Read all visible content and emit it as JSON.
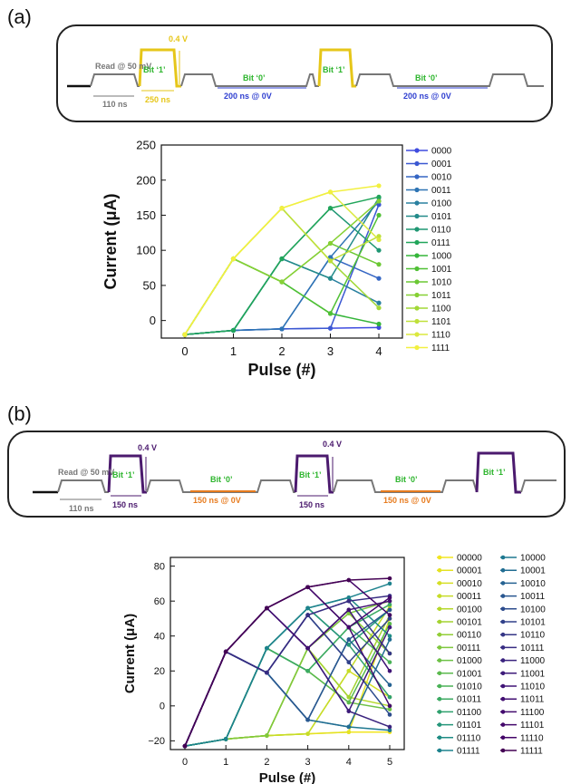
{
  "panel_a": {
    "label": "(a)",
    "pulse": {
      "read": "Read @ 50 mV",
      "read_width": "110 ns",
      "bit1": "Bit ‘1’",
      "bit1_amp": "0.4 V",
      "bit1_width": "250 ns",
      "bit0": "Bit ‘0’",
      "bit0_width": "200 ns @ 0V",
      "bit1_second": "Bit ‘1’",
      "bit0_second": "Bit ‘0’",
      "bit0_width_second": "200 ns @ 0V"
    },
    "colors": {
      "bit1": "#e6c619",
      "bit0": "#2f3fd0",
      "read": "#777777",
      "label": "#2db52d"
    }
  },
  "panel_b": {
    "label": "(b)",
    "pulse": {
      "read": "Read @ 50 mV",
      "read_width": "110 ns",
      "bit1": "Bit ‘1’",
      "bit1_amp": "0.4 V",
      "bit1_width": "150 ns",
      "bit0": "Bit ‘0’",
      "bit0_width": "150 ns @ 0V",
      "bit1_second": "Bit ‘1’",
      "bit1_amp_second": "0.4 V",
      "bit1_width_second": "150 ns",
      "bit0_second": "Bit ‘0’",
      "bit0_width_second": "150 ns @ 0V",
      "bit1_third": "Bit ‘1’"
    },
    "colors": {
      "bit1": "#4b1a6e",
      "bit0": "#e77b1e",
      "read": "#777777",
      "label": "#2db52d"
    }
  },
  "chart_data": [
    {
      "type": "line",
      "xlabel": "Pulse (#)",
      "ylabel": "Current (μA)",
      "x": [
        0,
        1,
        2,
        3,
        4
      ],
      "xticks": [
        "0",
        "1",
        "2",
        "3",
        "4"
      ],
      "ylim": [
        -25,
        250
      ],
      "yticks": [
        "0",
        "50",
        "100",
        "150",
        "200",
        "250"
      ],
      "ytick_values": [
        0,
        50,
        100,
        150,
        200,
        250
      ],
      "legend_position": "right",
      "series": [
        {
          "name": "0000",
          "color": "#3f4cdf",
          "values": [
            -20,
            -14,
            -12,
            -11,
            -10
          ]
        },
        {
          "name": "0001",
          "color": "#3b58d2",
          "values": [
            -20,
            -14,
            -12,
            -11,
            165
          ]
        },
        {
          "name": "0010",
          "color": "#3566c4",
          "values": [
            -20,
            -14,
            -12,
            90,
            60
          ]
        },
        {
          "name": "0011",
          "color": "#2e74b4",
          "values": [
            -20,
            -14,
            -12,
            90,
            170
          ]
        },
        {
          "name": "0100",
          "color": "#2a80a0",
          "values": [
            -20,
            -14,
            88,
            60,
            25
          ]
        },
        {
          "name": "0101",
          "color": "#238b8a",
          "values": [
            -20,
            -14,
            88,
            60,
            175
          ]
        },
        {
          "name": "0110",
          "color": "#1f9773",
          "values": [
            -20,
            -14,
            88,
            160,
            100
          ]
        },
        {
          "name": "0111",
          "color": "#21a55a",
          "values": [
            -20,
            -14,
            88,
            160,
            176
          ]
        },
        {
          "name": "1000",
          "color": "#35b53a",
          "values": [
            -20,
            88,
            55,
            10,
            -5
          ]
        },
        {
          "name": "1001",
          "color": "#50c035",
          "values": [
            -20,
            88,
            55,
            10,
            150
          ]
        },
        {
          "name": "1010",
          "color": "#6bc834",
          "values": [
            -20,
            88,
            55,
            110,
            80
          ]
        },
        {
          "name": "1011",
          "color": "#86d034",
          "values": [
            -20,
            88,
            55,
            110,
            170
          ]
        },
        {
          "name": "1100",
          "color": "#a2d837",
          "values": [
            -20,
            88,
            160,
            85,
            18
          ]
        },
        {
          "name": "1101",
          "color": "#bfe03a",
          "values": [
            -20,
            88,
            160,
            85,
            120
          ]
        },
        {
          "name": "1110",
          "color": "#dbe83e",
          "values": [
            -20,
            88,
            160,
            183,
            115
          ]
        },
        {
          "name": "1111",
          "color": "#f2f040",
          "values": [
            -20,
            88,
            160,
            183,
            192
          ]
        }
      ]
    },
    {
      "type": "line",
      "xlabel": "Pulse (#)",
      "ylabel": "Current (μA)",
      "x": [
        0,
        1,
        2,
        3,
        4,
        5
      ],
      "xticks": [
        "0",
        "1",
        "2",
        "3",
        "4",
        "5"
      ],
      "ylim": [
        -25,
        85
      ],
      "yticks": [
        "−20",
        "0",
        "20",
        "40",
        "60",
        "80"
      ],
      "ytick_values": [
        -20,
        0,
        20,
        40,
        60,
        80
      ],
      "legend_position": "right",
      "series": [
        {
          "name": "00000",
          "color": "#f2e521",
          "values": [
            -23,
            -19,
            -17,
            -16,
            -15,
            -15
          ]
        },
        {
          "name": "00001",
          "color": "#e4e223",
          "values": [
            -23,
            -19,
            -17,
            -16,
            -15,
            50
          ]
        },
        {
          "name": "00010",
          "color": "#d5df25",
          "values": [
            -23,
            -19,
            -17,
            -16,
            20,
            5
          ]
        },
        {
          "name": "00011",
          "color": "#c6dc28",
          "values": [
            -23,
            -19,
            -17,
            -16,
            20,
            57
          ]
        },
        {
          "name": "00100",
          "color": "#b5d82c",
          "values": [
            -23,
            -19,
            -17,
            33,
            5,
            0
          ]
        },
        {
          "name": "00101",
          "color": "#a4d331",
          "values": [
            -23,
            -19,
            -17,
            33,
            5,
            52
          ]
        },
        {
          "name": "00110",
          "color": "#92ce37",
          "values": [
            -23,
            -19,
            -17,
            33,
            53,
            30
          ]
        },
        {
          "name": "00111",
          "color": "#7fc83e",
          "values": [
            -23,
            -19,
            -17,
            33,
            53,
            60
          ]
        },
        {
          "name": "01000",
          "color": "#6dc146",
          "values": [
            -23,
            -19,
            33,
            20,
            2,
            -2
          ]
        },
        {
          "name": "01001",
          "color": "#5bba4e",
          "values": [
            -23,
            -19,
            33,
            20,
            2,
            47
          ]
        },
        {
          "name": "01010",
          "color": "#4ab257",
          "values": [
            -23,
            -19,
            33,
            20,
            45,
            25
          ]
        },
        {
          "name": "01011",
          "color": "#3caa62",
          "values": [
            -23,
            -19,
            33,
            20,
            45,
            58
          ]
        },
        {
          "name": "01100",
          "color": "#2fa06e",
          "values": [
            -23,
            -19,
            33,
            56,
            35,
            5
          ]
        },
        {
          "name": "01101",
          "color": "#25967a",
          "values": [
            -23,
            -19,
            33,
            56,
            35,
            55
          ]
        },
        {
          "name": "01110",
          "color": "#1f8c84",
          "values": [
            -23,
            -19,
            33,
            56,
            62,
            40
          ]
        },
        {
          "name": "01111",
          "color": "#1d828d",
          "values": [
            -23,
            -19,
            33,
            56,
            62,
            70
          ]
        },
        {
          "name": "10000",
          "color": "#1e7890",
          "values": [
            -23,
            31,
            19,
            -8,
            -12,
            -14
          ]
        },
        {
          "name": "10001",
          "color": "#216d92",
          "values": [
            -23,
            31,
            19,
            -8,
            -12,
            38
          ]
        },
        {
          "name": "10010",
          "color": "#256292",
          "values": [
            -23,
            31,
            19,
            -8,
            38,
            12
          ]
        },
        {
          "name": "10011",
          "color": "#295790",
          "values": [
            -23,
            31,
            19,
            -8,
            38,
            55
          ]
        },
        {
          "name": "10100",
          "color": "#2d4c8d",
          "values": [
            -23,
            31,
            19,
            52,
            25,
            -5
          ]
        },
        {
          "name": "10101",
          "color": "#31418a",
          "values": [
            -23,
            31,
            19,
            52,
            25,
            50
          ]
        },
        {
          "name": "10110",
          "color": "#343686",
          "values": [
            -23,
            31,
            19,
            52,
            60,
            30
          ]
        },
        {
          "name": "10111",
          "color": "#372c82",
          "values": [
            -23,
            31,
            19,
            52,
            60,
            63
          ]
        },
        {
          "name": "11000",
          "color": "#3a237e",
          "values": [
            -23,
            31,
            56,
            33,
            -3,
            -12
          ]
        },
        {
          "name": "11001",
          "color": "#3d1b7a",
          "values": [
            -23,
            31,
            56,
            33,
            -3,
            45
          ]
        },
        {
          "name": "11010",
          "color": "#401476",
          "values": [
            -23,
            31,
            56,
            33,
            55,
            20
          ]
        },
        {
          "name": "11011",
          "color": "#420f72",
          "values": [
            -23,
            31,
            56,
            33,
            55,
            60
          ]
        },
        {
          "name": "11100",
          "color": "#430b6e",
          "values": [
            -23,
            31,
            56,
            68,
            45,
            0
          ]
        },
        {
          "name": "11101",
          "color": "#44086b",
          "values": [
            -23,
            31,
            56,
            68,
            45,
            62
          ]
        },
        {
          "name": "11110",
          "color": "#440568",
          "values": [
            -23,
            31,
            56,
            68,
            72,
            52
          ]
        },
        {
          "name": "11111",
          "color": "#440154",
          "values": [
            -23,
            31,
            56,
            68,
            72,
            73
          ]
        }
      ]
    }
  ]
}
